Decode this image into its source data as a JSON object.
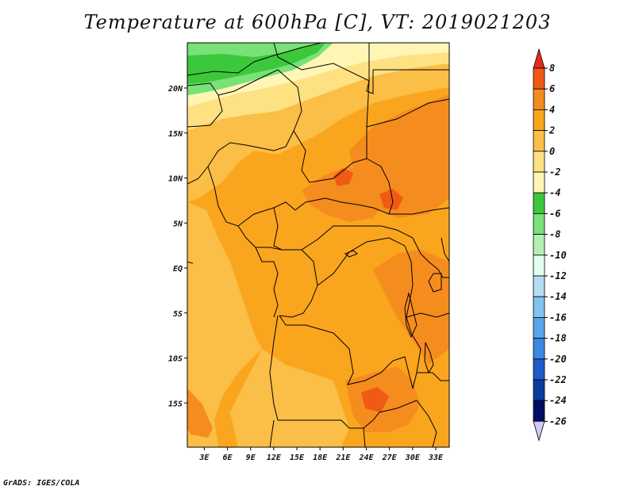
{
  "title": "Temperature at 600hPa [C], VT: 2019021203",
  "credit": "GrADS: IGES/COLA",
  "map": {
    "lat_ticks": [
      "20N",
      "15N",
      "10N",
      "5N",
      "EQ",
      "5S",
      "10S",
      "15S"
    ],
    "lat_values": [
      20,
      15,
      10,
      5,
      0,
      -5,
      -10,
      -15
    ],
    "lon_ticks": [
      "3E",
      "6E",
      "9E",
      "12E",
      "15E",
      "18E",
      "21E",
      "24E",
      "27E",
      "30E",
      "33E"
    ],
    "lon_values": [
      3,
      6,
      9,
      12,
      15,
      18,
      21,
      24,
      27,
      30,
      33
    ]
  },
  "colorbar": {
    "labels": [
      "8",
      "6",
      "4",
      "2",
      "0",
      "-2",
      "-4",
      "-6",
      "-8",
      "-10",
      "-12",
      "-14",
      "-16",
      "-18",
      "-20",
      "-22",
      "-24",
      "-26"
    ],
    "colors": [
      "#e8281e",
      "#f05a14",
      "#f58c1e",
      "#faa51e",
      "#fbbe46",
      "#fde182",
      "#fff5b4",
      "#3cc83c",
      "#78e178",
      "#b4f0b4",
      "#e1fff0",
      "#b4dcf5",
      "#82c3f0",
      "#5aa5eb",
      "#3c87e1",
      "#1e5ac8",
      "#0a3c9b",
      "#000f64",
      "#d2c8f5"
    ]
  }
}
